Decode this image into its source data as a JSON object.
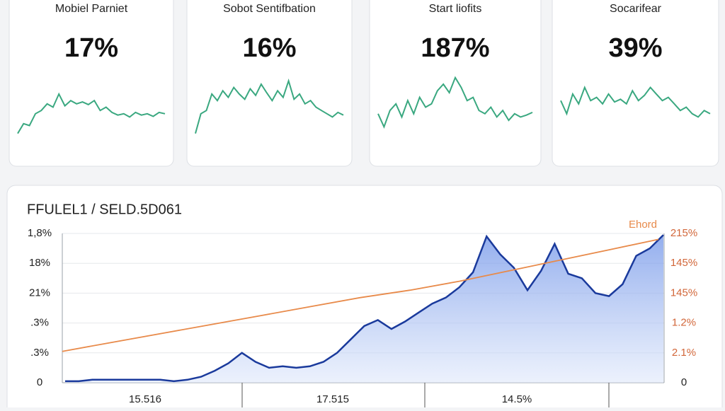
{
  "cards": [
    {
      "title": "Mobiel Parniet",
      "value": "17%",
      "ylim": [
        0,
        100
      ],
      "values": [
        10,
        25,
        22,
        40,
        45,
        55,
        50,
        70,
        52,
        60,
        55,
        58,
        54,
        60,
        45,
        50,
        42,
        38,
        40,
        35,
        42,
        38,
        40,
        36,
        42,
        40
      ]
    },
    {
      "title": "Sobot Sentifbation",
      "value": "16%",
      "ylim": [
        0,
        100
      ],
      "values": [
        10,
        40,
        45,
        70,
        60,
        75,
        65,
        80,
        70,
        62,
        78,
        68,
        85,
        72,
        60,
        75,
        65,
        90,
        62,
        70,
        55,
        60,
        50,
        45,
        40,
        35,
        42,
        38
      ]
    },
    {
      "title": "Start liofits",
      "value": "187%",
      "ylim": [
        0,
        100
      ],
      "values": [
        40,
        20,
        45,
        55,
        35,
        60,
        40,
        65,
        50,
        55,
        75,
        85,
        72,
        95,
        80,
        60,
        65,
        45,
        40,
        50,
        35,
        45,
        30,
        40,
        35,
        38,
        42
      ]
    },
    {
      "title": "Socarifear",
      "value": "39%",
      "ylim": [
        0,
        100
      ],
      "values": [
        60,
        40,
        70,
        55,
        80,
        60,
        65,
        55,
        70,
        58,
        62,
        55,
        75,
        60,
        68,
        80,
        70,
        60,
        65,
        55,
        45,
        50,
        40,
        35,
        45,
        40
      ]
    }
  ],
  "main_chart": {
    "title": "FFULEL1 / SELD.5D061",
    "ylim": [
      0,
      100
    ],
    "yticks": [
      {
        "value": 100,
        "label": "1,8%"
      },
      {
        "value": 80,
        "label": "18%"
      },
      {
        "value": 60,
        "label": "21%"
      },
      {
        "value": 40,
        "label": ".3%"
      },
      {
        "value": 20,
        "label": ".3%"
      },
      0
    ],
    "y2ticks": [
      {
        "value": 100,
        "label": "215%"
      },
      {
        "value": 80,
        "label": "145%"
      },
      {
        "value": 60,
        "label": "145%"
      },
      {
        "value": 40,
        "label": "1.2%"
      },
      {
        "value": 20,
        "label": "2.1%"
      },
      0
    ],
    "x_labels": [
      "15.516",
      "17.515",
      "14.5%"
    ],
    "series": [
      {
        "color": "#1a3a9c",
        "values": [
          1,
          1,
          2,
          2,
          2,
          2,
          2,
          2,
          1,
          2,
          4,
          8,
          13,
          20,
          14,
          10,
          11,
          10,
          11,
          14,
          20,
          29,
          38,
          42,
          36,
          41,
          47,
          53,
          57,
          64,
          74,
          98,
          86,
          77,
          62,
          75,
          93,
          73,
          70,
          60,
          58,
          66,
          85,
          90,
          99
        ]
      },
      {
        "name": "Ehord",
        "color": "#e88a4a",
        "values": [
          21,
          27,
          33,
          39,
          45,
          51,
          57,
          62,
          68,
          75,
          82,
          89,
          96
        ]
      }
    ]
  }
}
